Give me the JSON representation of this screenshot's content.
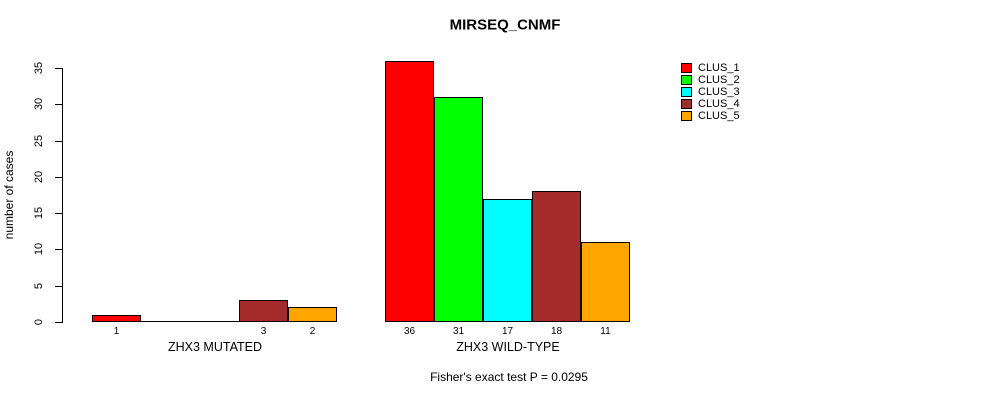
{
  "chart_data": {
    "type": "bar",
    "title": "MIRSEQ_CNMF",
    "ylabel": "number of cases",
    "xlabel": "",
    "ylim": [
      0,
      35
    ],
    "yticks": [
      0,
      5,
      10,
      15,
      20,
      25,
      30,
      35
    ],
    "grid": false,
    "legend_position": "right",
    "series": [
      {
        "name": "CLUS_1",
        "color": "#FF0000"
      },
      {
        "name": "CLUS_2",
        "color": "#00FF00"
      },
      {
        "name": "CLUS_3",
        "color": "#00FFFF"
      },
      {
        "name": "CLUS_4",
        "color": "#A52A2A"
      },
      {
        "name": "CLUS_5",
        "color": "#FFA500"
      }
    ],
    "groups": [
      {
        "label": "ZHX3 MUTATED",
        "values": [
          1,
          0,
          0,
          3,
          2
        ]
      },
      {
        "label": "ZHX3 WILD-TYPE",
        "values": [
          36,
          31,
          17,
          18,
          11
        ]
      }
    ],
    "bar_value_labels": {
      "ZHX3 MUTATED": [
        "1",
        "",
        "",
        "3",
        "2"
      ],
      "ZHX3 WILD-TYPE": [
        "36",
        "31",
        "17",
        "18",
        "11"
      ]
    },
    "annotation": "Fisher's exact test P = 0.0295",
    "colors": {
      "foreground": "#000000",
      "background": "#FFFFFF"
    }
  }
}
